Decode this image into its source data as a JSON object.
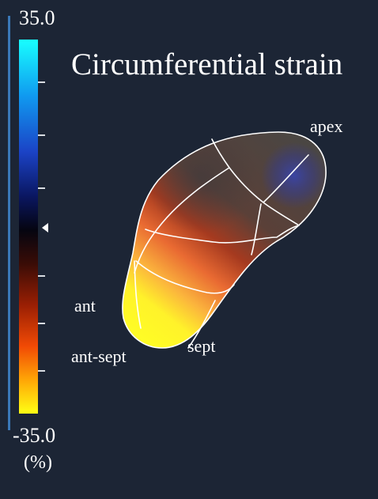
{
  "title": "Circumferential strain",
  "colorbar": {
    "max_label": "35.0",
    "min_label": "-35.0",
    "unit_label": "(%)"
  },
  "labels": {
    "apex": "apex",
    "ant": "ant",
    "ant_sept": "ant-sept",
    "sept": "sept"
  },
  "colors": {
    "background": "#1c2535",
    "high": "#18ffff",
    "zero": "#050510",
    "low": "#ffff14",
    "mesh_lines": "#ffffff"
  }
}
